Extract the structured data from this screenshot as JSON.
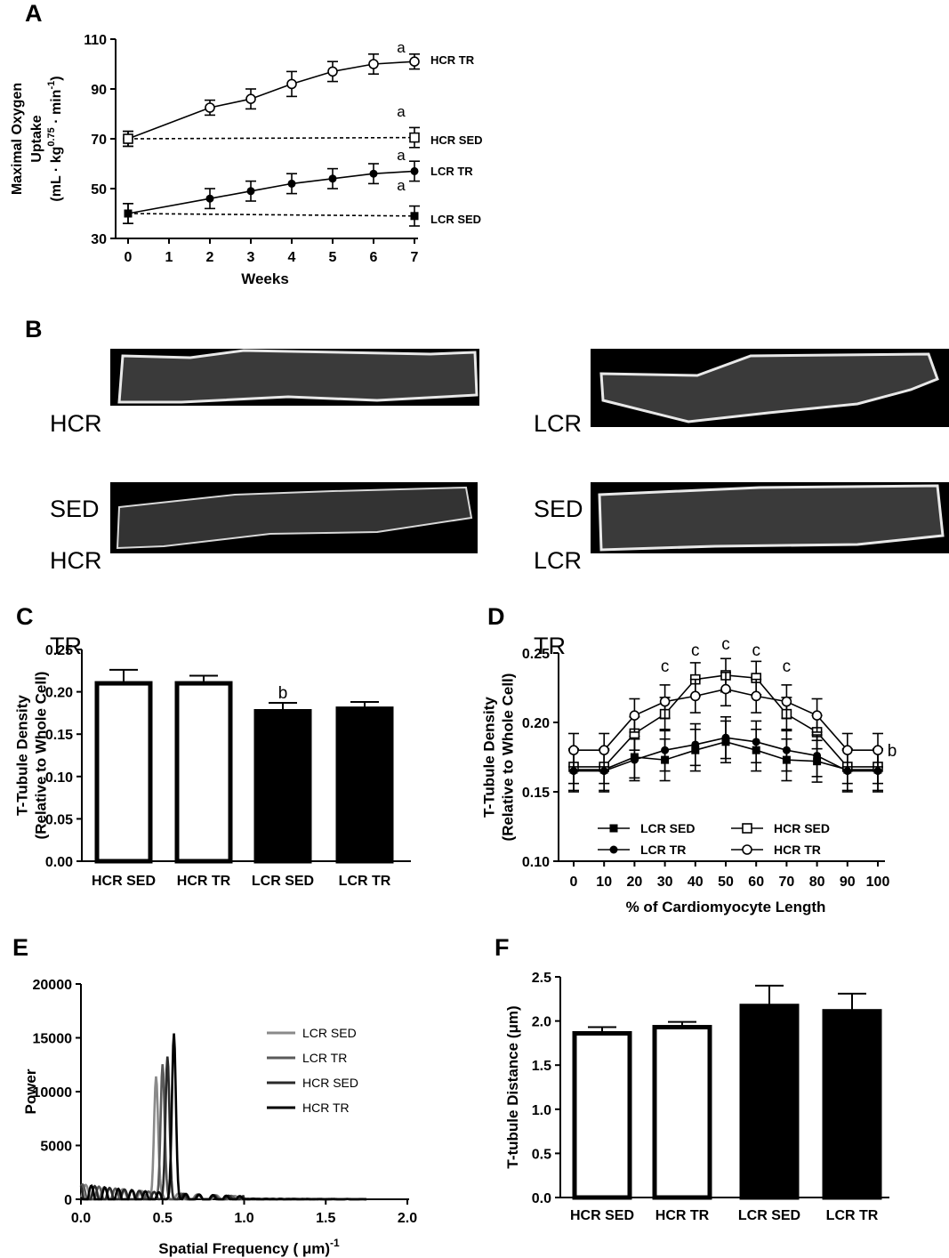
{
  "panels": {
    "A": "A",
    "B": "B",
    "C": "C",
    "D": "D",
    "E": "E",
    "F": "F"
  },
  "cells": {
    "hcr_sed": [
      "HCR",
      "SED"
    ],
    "lcr_sed": [
      "LCR",
      "SED"
    ],
    "hcr_tr": [
      "HCR",
      "TR"
    ],
    "lcr_tr": [
      "LCR",
      "TR"
    ]
  },
  "chart_data": [
    {
      "panel": "A",
      "type": "line",
      "xlabel": "Weeks",
      "ylabel": "Maximal Oxygen Uptake (mL · kg0.75 · min-1)",
      "ylabel_lines": [
        "Maximal Oxygen",
        "Uptake"
      ],
      "ylabel_unit": {
        "prefix": "(mL · kg",
        "sup1": "0.75",
        "mid": " · min",
        "sup2": "-1",
        "suffix": ")"
      },
      "xlim": [
        0,
        7
      ],
      "ylim": [
        30,
        110
      ],
      "xticks": [
        "0",
        "1",
        "2",
        "3",
        "4",
        "5",
        "6",
        "7"
      ],
      "yticks": [
        "30",
        "50",
        "70",
        "90",
        "110"
      ],
      "series": [
        {
          "name": "HCR TR",
          "style": "solid",
          "marker": "open-circle",
          "x": [
            0,
            2,
            3,
            4,
            5,
            6,
            7
          ],
          "y": [
            70,
            82.5,
            86,
            92,
            97,
            100,
            101
          ],
          "err": [
            3,
            3,
            4,
            5,
            4,
            4,
            3
          ]
        },
        {
          "name": "HCR SED",
          "style": "dashed",
          "marker": "open-square",
          "x": [
            0,
            7
          ],
          "y": [
            70,
            70.5
          ],
          "err": [
            3,
            4
          ]
        },
        {
          "name": "LCR TR",
          "style": "solid",
          "marker": "filled-circle",
          "x": [
            0,
            2,
            3,
            4,
            5,
            6,
            7
          ],
          "y": [
            40,
            46,
            49,
            52,
            54,
            56,
            57
          ],
          "err": [
            4,
            4,
            4,
            4,
            4,
            4,
            4
          ]
        },
        {
          "name": "LCR SED",
          "style": "dashed",
          "marker": "filled-square",
          "x": [
            0,
            7
          ],
          "y": [
            40,
            39
          ],
          "err": [
            4,
            4
          ]
        }
      ],
      "annotations": [
        "a",
        "a",
        "a",
        "a"
      ]
    },
    {
      "panel": "C",
      "type": "bar",
      "ylabel": "T-Tubule Density (Relative to Whole Cell)",
      "ylabel_lines": [
        "T-Tubule Density",
        "(Relative to Whole Cell)"
      ],
      "categories": [
        "HCR SED",
        "HCR TR",
        "LCR SED",
        "LCR TR"
      ],
      "values": [
        0.21,
        0.21,
        0.177,
        0.18
      ],
      "errors": [
        0.016,
        0.009,
        0.01,
        0.008
      ],
      "fills": [
        "#ffffff",
        "#ffffff",
        "#000000",
        "#000000"
      ],
      "ylim": [
        0,
        0.25
      ],
      "yticks": [
        "0.00",
        "0.05",
        "0.10",
        "0.15",
        "0.20",
        "0.25"
      ],
      "annotations": [
        "",
        "",
        "b",
        ""
      ]
    },
    {
      "panel": "D",
      "type": "line",
      "xlabel": "% of Cardiomyocyte Length",
      "ylabel": "T-Tubule Density (Relative to Whole Cell)",
      "ylabel_lines": [
        "T-Tubule Density",
        "(Relative to Whole Cell)"
      ],
      "xlim": [
        0,
        100
      ],
      "ylim": [
        0.1,
        0.25
      ],
      "xticks": [
        "0",
        "10",
        "20",
        "30",
        "40",
        "50",
        "60",
        "70",
        "80",
        "90",
        "100"
      ],
      "yticks": [
        "0.10",
        "0.15",
        "0.20",
        "0.25"
      ],
      "x": [
        0,
        10,
        20,
        30,
        40,
        50,
        60,
        70,
        80,
        90,
        100
      ],
      "series": [
        {
          "name": "LCR SED",
          "marker": "filled-square",
          "values": [
            0.166,
            0.166,
            0.175,
            0.173,
            0.18,
            0.186,
            0.18,
            0.173,
            0.172,
            0.166,
            0.166
          ],
          "err": [
            0.015,
            0.015,
            0.015,
            0.015,
            0.015,
            0.015,
            0.015,
            0.015,
            0.015,
            0.015,
            0.015
          ]
        },
        {
          "name": "HCR SED",
          "marker": "open-square",
          "values": [
            0.168,
            0.168,
            0.192,
            0.206,
            0.231,
            0.234,
            0.232,
            0.206,
            0.193,
            0.168,
            0.168
          ],
          "err": [
            0.012,
            0.012,
            0.012,
            0.012,
            0.012,
            0.012,
            0.012,
            0.012,
            0.012,
            0.012,
            0.012
          ]
        },
        {
          "name": "LCR TR",
          "marker": "filled-circle",
          "values": [
            0.165,
            0.165,
            0.173,
            0.18,
            0.184,
            0.189,
            0.186,
            0.18,
            0.176,
            0.165,
            0.165
          ],
          "err": [
            0.015,
            0.015,
            0.015,
            0.015,
            0.015,
            0.015,
            0.015,
            0.015,
            0.015,
            0.015,
            0.015
          ]
        },
        {
          "name": "HCR TR",
          "marker": "open-circle",
          "values": [
            0.18,
            0.18,
            0.205,
            0.215,
            0.219,
            0.224,
            0.219,
            0.215,
            0.205,
            0.18,
            0.18
          ],
          "err": [
            0.012,
            0.012,
            0.012,
            0.012,
            0.012,
            0.012,
            0.012,
            0.012,
            0.012,
            0.012,
            0.012
          ]
        }
      ],
      "annotations": {
        "c_at_x": [
          30,
          40,
          50,
          60,
          70
        ],
        "c_label": "c",
        "b_label": "b"
      }
    },
    {
      "panel": "E",
      "type": "line",
      "xlabel": "Spatial Frequency ( μm)-1",
      "xlabel_parts": {
        "main": "Spatial Frequency ( ",
        "mu": "μ",
        "unit": "m)",
        "sup": "-1"
      },
      "ylabel": "Power",
      "xlim": [
        0,
        2.0
      ],
      "ylim": [
        0,
        20000
      ],
      "xticks": [
        "0.0",
        "0.5",
        "1.0",
        "1.5",
        "2.0"
      ],
      "yticks": [
        "0",
        "5000",
        "10000",
        "15000",
        "20000"
      ],
      "series": [
        {
          "name": "LCR SED",
          "color": "#8a8a8a",
          "peak_x": 0.46,
          "peak_y": 11300
        },
        {
          "name": "LCR TR",
          "color": "#5a5a5a",
          "peak_x": 0.5,
          "peak_y": 12200
        },
        {
          "name": "HCR SED",
          "color": "#2a2a2a",
          "peak_x": 0.53,
          "peak_y": 12800
        },
        {
          "name": "HCR TR",
          "color": "#000000",
          "peak_x": 0.57,
          "peak_y": 15000
        }
      ]
    },
    {
      "panel": "F",
      "type": "bar",
      "ylabel": "T-tubule Distance (μm)",
      "categories": [
        "HCR SED",
        "HCR TR",
        "LCR SED",
        "LCR TR"
      ],
      "values": [
        1.86,
        1.93,
        2.17,
        2.11
      ],
      "errors": [
        0.07,
        0.06,
        0.23,
        0.2
      ],
      "fills": [
        "#ffffff",
        "#ffffff",
        "#000000",
        "#000000"
      ],
      "ylim": [
        0,
        2.5
      ],
      "yticks": [
        "0.0",
        "0.5",
        "1.0",
        "1.5",
        "2.0",
        "2.5"
      ]
    }
  ]
}
